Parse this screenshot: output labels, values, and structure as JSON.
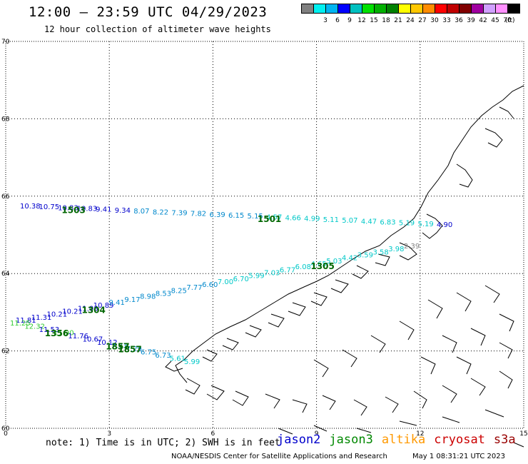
{
  "header": {
    "title": "12:00 – 23:59 UTC 04/29/2023",
    "subtitle": "12 hour collection of altimeter wave heights"
  },
  "legend": {
    "unit": "(ft)",
    "bins": [
      {
        "label": "",
        "color": "#808080"
      },
      {
        "label": "3",
        "color": "#00f0f0"
      },
      {
        "label": "6",
        "color": "#00b4f0"
      },
      {
        "label": "9",
        "color": "#0000ff"
      },
      {
        "label": "12",
        "color": "#00c0c0"
      },
      {
        "label": "15",
        "color": "#00e000"
      },
      {
        "label": "18",
        "color": "#00b000"
      },
      {
        "label": "21",
        "color": "#008000"
      },
      {
        "label": "24",
        "color": "#ffff00"
      },
      {
        "label": "27",
        "color": "#ffc800"
      },
      {
        "label": "30",
        "color": "#ff8c00"
      },
      {
        "label": "33",
        "color": "#ff0000"
      },
      {
        "label": "36",
        "color": "#c00000"
      },
      {
        "label": "39",
        "color": "#800000"
      },
      {
        "label": "42",
        "color": "#a000a0"
      },
      {
        "label": "45",
        "color": "#d0a0ff"
      },
      {
        "label": "70",
        "color": "#ff90ff"
      },
      {
        "label": "",
        "color": "#000000"
      }
    ]
  },
  "axes": {
    "lat_ticks": [
      "70",
      "68",
      "66",
      "64",
      "62",
      "60"
    ],
    "lon_ticks": [
      "0",
      "3",
      "6",
      "9",
      "12",
      "15"
    ]
  },
  "tracks": [
    {
      "name": "track-66N",
      "labels": [
        {
          "text": "10.38",
          "color": "#0000cc"
        },
        {
          "text": "10.75",
          "color": "#0000cc"
        },
        {
          "text": "10.83",
          "color": "#0000cc"
        },
        {
          "text": "10.83",
          "color": "#0000cc"
        },
        {
          "text": "9.41",
          "color": "#0000cc"
        },
        {
          "text": "9.34",
          "color": "#0000cc"
        },
        {
          "text": "8.07",
          "color": "#0088cc"
        },
        {
          "text": "8.22",
          "color": "#0088cc"
        },
        {
          "text": "7.39",
          "color": "#0088cc"
        },
        {
          "text": "7.82",
          "color": "#0088cc"
        },
        {
          "text": "6.39",
          "color": "#0088cc"
        },
        {
          "text": "6.15",
          "color": "#0088cc"
        },
        {
          "text": "5.15",
          "color": "#0088cc"
        },
        {
          "text": "4.57",
          "color": "#00c8c8"
        },
        {
          "text": "4.66",
          "color": "#00c8c8"
        },
        {
          "text": "4.99",
          "color": "#00c8c8"
        },
        {
          "text": "5.11",
          "color": "#00c8c8"
        },
        {
          "text": "5.07",
          "color": "#00c8c8"
        },
        {
          "text": "4.47",
          "color": "#00c8c8"
        },
        {
          "text": "6.83",
          "color": "#00c8c8"
        },
        {
          "text": "5.19",
          "color": "#00c8c8"
        },
        {
          "text": "5.19",
          "color": "#00c8c8"
        },
        {
          "text": "4.90",
          "color": "#0000cc"
        }
      ],
      "times": [
        {
          "text": "1503",
          "color": "#006600"
        },
        {
          "text": "1501",
          "color": "#006600"
        }
      ]
    },
    {
      "name": "track-64N",
      "labels": [
        {
          "text": "11.81",
          "color": "#0000cc"
        },
        {
          "text": "11.31",
          "color": "#0000cc"
        },
        {
          "text": "10.21",
          "color": "#0000cc"
        },
        {
          "text": "10.21",
          "color": "#0000cc"
        },
        {
          "text": "11.03",
          "color": "#0000cc"
        },
        {
          "text": "10.89",
          "color": "#0000cc"
        },
        {
          "text": "9.41",
          "color": "#0088cc"
        },
        {
          "text": "9.17",
          "color": "#0088cc"
        },
        {
          "text": "8.98",
          "color": "#0088cc"
        },
        {
          "text": "8.53",
          "color": "#0088cc"
        },
        {
          "text": "8.25",
          "color": "#0088cc"
        },
        {
          "text": "7.77",
          "color": "#0088cc"
        },
        {
          "text": "6.60",
          "color": "#0088cc"
        },
        {
          "text": "7.00",
          "color": "#00c8c8"
        },
        {
          "text": "6.70",
          "color": "#00c8c8"
        },
        {
          "text": "5.99",
          "color": "#00c8c8"
        },
        {
          "text": "7.03",
          "color": "#00c8c8"
        },
        {
          "text": "6.77",
          "color": "#00c8c8"
        },
        {
          "text": "6.08",
          "color": "#00c8c8"
        },
        {
          "text": "4.65",
          "color": "#00c8c8"
        },
        {
          "text": "5.03",
          "color": "#00c8c8"
        },
        {
          "text": "4.42",
          "color": "#00c8c8"
        },
        {
          "text": "3.59",
          "color": "#00c8c8"
        },
        {
          "text": "3.58",
          "color": "#00c8c8"
        },
        {
          "text": "3.98",
          "color": "#00c8c8"
        },
        {
          "text": "2.39",
          "color": "#808080"
        }
      ],
      "times": [
        {
          "text": "1304",
          "color": "#006600"
        },
        {
          "text": "1305",
          "color": "#006600"
        }
      ]
    },
    {
      "name": "track-62N",
      "labels": [
        {
          "text": "11.25",
          "color": "#33cc33"
        },
        {
          "text": "12.32",
          "color": "#33cc33"
        },
        {
          "text": "11.53",
          "color": "#0000cc"
        },
        {
          "text": "11.90",
          "color": "#33cc33"
        },
        {
          "text": "11.76",
          "color": "#0000cc"
        },
        {
          "text": "10.67",
          "color": "#0000cc"
        },
        {
          "text": "10.12",
          "color": "#0000cc"
        },
        {
          "text": "7.73",
          "color": "#0088cc"
        },
        {
          "text": "7.29",
          "color": "#0088cc"
        },
        {
          "text": "6.75",
          "color": "#0088cc"
        },
        {
          "text": "6.73",
          "color": "#0088cc"
        },
        {
          "text": "5.61",
          "color": "#00c8c8"
        },
        {
          "text": "5.99",
          "color": "#00c8c8"
        }
      ],
      "times": [
        {
          "text": "1356",
          "color": "#006600"
        },
        {
          "text": "1857",
          "color": "#006600"
        },
        {
          "text": "1857",
          "color": "#006600"
        }
      ]
    }
  ],
  "footer": {
    "note": "note:  1) Time is in UTC; 2) SWH is in feet",
    "satellites": [
      {
        "name": "jason2",
        "color": "#0000cc"
      },
      {
        "name": "jason3",
        "color": "#008800"
      },
      {
        "name": "altika",
        "color": "#ff9900"
      },
      {
        "name": "cryosat",
        "color": "#cc0000"
      },
      {
        "name": "s3a",
        "color": "#990000"
      }
    ],
    "credit": "NOAA/NESDIS Center for Satellite Applications and Research",
    "timestamp": "May  1 08:31:21 UTC 2023"
  }
}
